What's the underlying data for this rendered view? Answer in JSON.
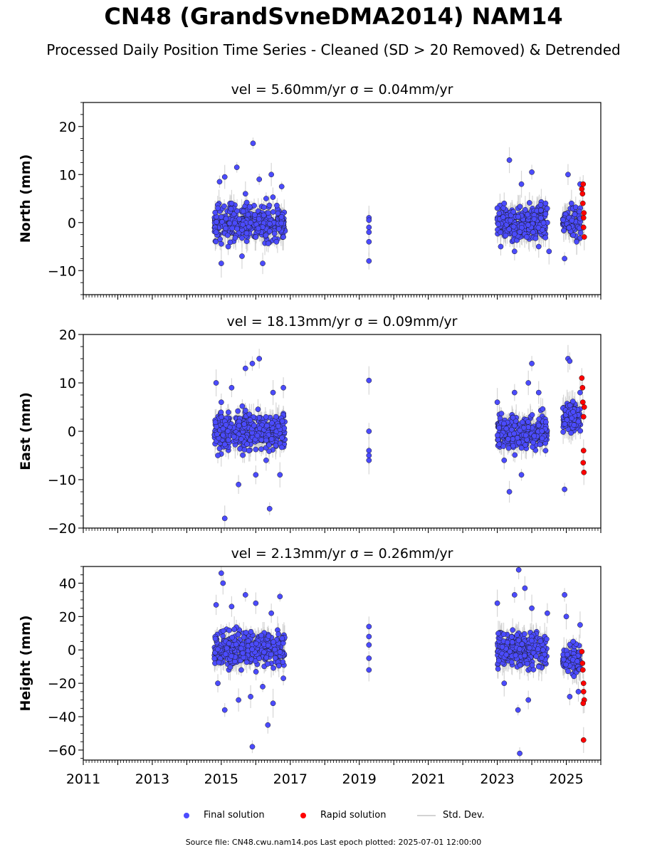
{
  "title": "CN48 (GrandSvneDMA2014) NAM14",
  "subtitle": "Processed Daily Position Time Series - Cleaned (SD > 20 Removed) & Detrended",
  "footer": "Source file: CN48.cwu.nam14.pos  Last epoch plotted: 2025-07-01 12:00:00",
  "legend": {
    "final": "Final solution",
    "rapid": "Rapid solution",
    "std": "Std. Dev."
  },
  "colors": {
    "final": "#4b4bff",
    "rapid": "#ff0000",
    "std": "#c8c8c8",
    "edge": "#1a1a1a"
  },
  "chart_data": [
    {
      "type": "scatter",
      "title": "vel = 5.60mm/yr   σ = 0.04mm/yr",
      "ylabel": "North (mm)",
      "xlim": [
        2011,
        2026
      ],
      "ylim": [
        -15,
        25
      ],
      "yticks": [
        -10,
        0,
        10,
        20
      ],
      "xticks": [
        2011,
        2013,
        2015,
        2017,
        2019,
        2021,
        2023,
        2025
      ],
      "grid": false,
      "series": [
        {
          "name": "Final solution",
          "points": [
            [
              2014.85,
              -2
            ],
            [
              2014.9,
              3
            ],
            [
              2014.95,
              8.5
            ],
            [
              2015.0,
              -8.5
            ],
            [
              2015.1,
              9.5
            ],
            [
              2015.2,
              -5
            ],
            [
              2015.3,
              4
            ],
            [
              2015.45,
              11.5
            ],
            [
              2015.6,
              -7
            ],
            [
              2015.7,
              6
            ],
            [
              2015.85,
              0
            ],
            [
              2015.92,
              16.5
            ],
            [
              2016.0,
              -3
            ],
            [
              2016.1,
              9
            ],
            [
              2016.2,
              -8.5
            ],
            [
              2016.3,
              5
            ],
            [
              2016.45,
              10
            ],
            [
              2016.6,
              -4
            ],
            [
              2016.75,
              7.5
            ],
            [
              2016.8,
              -3
            ],
            [
              2019.28,
              1
            ],
            [
              2019.28,
              -1
            ],
            [
              2019.28,
              -4
            ],
            [
              2019.28,
              -8
            ],
            [
              2019.28,
              0.5
            ],
            [
              2019.28,
              -2
            ],
            [
              2023.0,
              3
            ],
            [
              2023.1,
              -5
            ],
            [
              2023.2,
              4
            ],
            [
              2023.35,
              13
            ],
            [
              2023.5,
              -6
            ],
            [
              2023.7,
              8
            ],
            [
              2023.85,
              -3
            ],
            [
              2024.0,
              10.5
            ],
            [
              2024.2,
              -5
            ],
            [
              2024.4,
              4
            ],
            [
              2024.5,
              -6
            ],
            [
              2024.95,
              -7.5
            ],
            [
              2025.05,
              10
            ],
            [
              2025.15,
              4
            ],
            [
              2025.3,
              -4
            ],
            [
              2025.4,
              8
            ]
          ]
        },
        {
          "name": "Rapid solution",
          "points": [
            [
              2025.45,
              7
            ],
            [
              2025.47,
              6
            ],
            [
              2025.48,
              4
            ],
            [
              2025.5,
              1
            ],
            [
              2025.5,
              -1
            ],
            [
              2025.52,
              -3
            ],
            [
              2025.49,
              8
            ],
            [
              2025.51,
              2
            ]
          ]
        }
      ]
    },
    {
      "type": "scatter",
      "title": "vel = 18.13mm/yr   σ = 0.09mm/yr",
      "ylabel": "East (mm)",
      "xlim": [
        2011,
        2026
      ],
      "ylim": [
        -20,
        20
      ],
      "yticks": [
        -20,
        -10,
        0,
        10,
        20
      ],
      "xticks": [
        2011,
        2013,
        2015,
        2017,
        2019,
        2021,
        2023,
        2025
      ],
      "grid": false,
      "series": [
        {
          "name": "Final solution",
          "points": [
            [
              2014.85,
              10
            ],
            [
              2014.9,
              -5
            ],
            [
              2015.0,
              6
            ],
            [
              2015.1,
              -18
            ],
            [
              2015.3,
              9
            ],
            [
              2015.5,
              -11
            ],
            [
              2015.7,
              13
            ],
            [
              2015.8,
              -4
            ],
            [
              2015.9,
              14
            ],
            [
              2016.0,
              -9
            ],
            [
              2016.1,
              15
            ],
            [
              2016.3,
              -6
            ],
            [
              2016.4,
              -16
            ],
            [
              2016.5,
              8
            ],
            [
              2016.7,
              -9
            ],
            [
              2016.8,
              9
            ],
            [
              2019.28,
              10.5
            ],
            [
              2019.28,
              0
            ],
            [
              2019.28,
              -4
            ],
            [
              2019.28,
              -6
            ],
            [
              2019.28,
              -5
            ],
            [
              2023.0,
              6
            ],
            [
              2023.2,
              -6
            ],
            [
              2023.35,
              -12.5
            ],
            [
              2023.5,
              8
            ],
            [
              2023.7,
              -9
            ],
            [
              2023.9,
              10
            ],
            [
              2024.0,
              14
            ],
            [
              2024.2,
              8
            ],
            [
              2024.4,
              -4
            ],
            [
              2024.95,
              -12
            ],
            [
              2025.05,
              15
            ],
            [
              2025.1,
              14.5
            ],
            [
              2025.2,
              4
            ],
            [
              2025.35,
              2
            ],
            [
              2025.4,
              8
            ]
          ]
        },
        {
          "name": "Rapid solution",
          "points": [
            [
              2025.45,
              11
            ],
            [
              2025.47,
              9
            ],
            [
              2025.48,
              6
            ],
            [
              2025.5,
              3
            ],
            [
              2025.5,
              -4
            ],
            [
              2025.49,
              -6.5
            ],
            [
              2025.51,
              -8.5
            ],
            [
              2025.52,
              5
            ]
          ]
        }
      ]
    },
    {
      "type": "scatter",
      "title": "vel = 2.13mm/yr   σ = 0.26mm/yr",
      "ylabel": "Height (mm)",
      "xlim": [
        2011,
        2026
      ],
      "ylim": [
        -66,
        50
      ],
      "yticks": [
        -60,
        -40,
        -20,
        0,
        20,
        40
      ],
      "xticks": [
        2011,
        2013,
        2015,
        2017,
        2019,
        2021,
        2023,
        2025
      ],
      "grid": false,
      "series": [
        {
          "name": "Final solution",
          "points": [
            [
              2014.85,
              27
            ],
            [
              2014.9,
              -20
            ],
            [
              2015.0,
              46
            ],
            [
              2015.05,
              40
            ],
            [
              2015.1,
              -36
            ],
            [
              2015.3,
              26
            ],
            [
              2015.5,
              -30
            ],
            [
              2015.7,
              33
            ],
            [
              2015.85,
              -28
            ],
            [
              2015.9,
              -58
            ],
            [
              2016.0,
              28
            ],
            [
              2016.2,
              -22
            ],
            [
              2016.35,
              -45
            ],
            [
              2016.45,
              22
            ],
            [
              2016.5,
              -32
            ],
            [
              2016.7,
              32
            ],
            [
              2016.8,
              -17
            ],
            [
              2019.28,
              14
            ],
            [
              2019.28,
              8
            ],
            [
              2019.28,
              3
            ],
            [
              2019.28,
              -5
            ],
            [
              2019.28,
              -12
            ],
            [
              2023.0,
              28
            ],
            [
              2023.2,
              -20
            ],
            [
              2023.5,
              33
            ],
            [
              2023.6,
              -36
            ],
            [
              2023.62,
              48
            ],
            [
              2023.65,
              -62
            ],
            [
              2023.8,
              37
            ],
            [
              2023.9,
              -30
            ],
            [
              2024.0,
              25
            ],
            [
              2024.2,
              -10
            ],
            [
              2024.45,
              22
            ],
            [
              2024.95,
              33
            ],
            [
              2025.0,
              20
            ],
            [
              2025.1,
              -28
            ],
            [
              2025.2,
              5
            ],
            [
              2025.35,
              -25
            ],
            [
              2025.4,
              15
            ]
          ]
        },
        {
          "name": "Rapid solution",
          "points": [
            [
              2025.45,
              -1
            ],
            [
              2025.47,
              -8
            ],
            [
              2025.48,
              -12
            ],
            [
              2025.5,
              -20
            ],
            [
              2025.5,
              -25
            ],
            [
              2025.52,
              -30
            ],
            [
              2025.49,
              -32
            ],
            [
              2025.5,
              -54
            ]
          ]
        }
      ]
    }
  ]
}
